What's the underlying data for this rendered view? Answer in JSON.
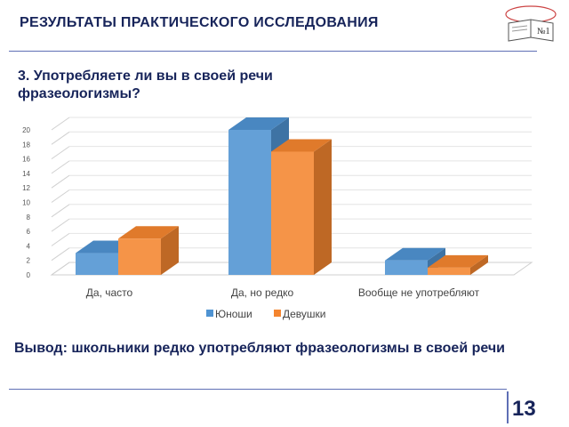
{
  "header": {
    "title": "РЕЗУЛЬТАТЫ ПРАКТИЧЕСКОГО ИССЛЕДОВАНИЯ"
  },
  "logo": {
    "text": "№1"
  },
  "question": "3. Употребляете ли вы в своей речи фразеологизмы?",
  "chart_data": {
    "type": "bar",
    "categories": [
      "Да, часто",
      "Да, но редко",
      "Вообще не употребляют"
    ],
    "series": [
      {
        "name": "Юноши",
        "values": [
          3,
          20,
          2
        ],
        "color": "#4f93d2"
      },
      {
        "name": "Девушки",
        "values": [
          5,
          17,
          1
        ],
        "color": "#f4852f"
      }
    ],
    "ylim": [
      0,
      20
    ],
    "yticks": [
      0,
      2,
      4,
      6,
      8,
      10,
      12,
      14,
      16,
      18,
      20
    ],
    "grid": true,
    "legend": "bottom",
    "style": "3d"
  },
  "conclusion": "Вывод: школьники редко употребляют фразеологизмы в своей речи",
  "footer": {
    "page_number": "13"
  }
}
